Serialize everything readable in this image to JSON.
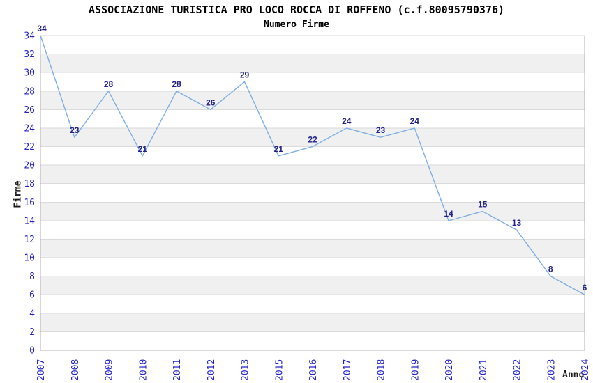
{
  "chart": {
    "title": "ASSOCIAZIONE TURISTICA PRO LOCO ROCCA DI ROFFENO (c.f.80095790376)",
    "subtitle": "Numero Firme",
    "y_axis_title": "Firme",
    "x_axis_title": "Anno"
  },
  "chart_data": {
    "type": "line",
    "title": "ASSOCIAZIONE TURISTICA PRO LOCO ROCCA DI ROFFENO (c.f.80095790376)",
    "subtitle": "Numero Firme",
    "xlabel": "Anno",
    "ylabel": "Firme",
    "categories": [
      "2007",
      "2008",
      "2009",
      "2010",
      "2011",
      "2012",
      "2013",
      "2015",
      "2016",
      "2017",
      "2018",
      "2019",
      "2020",
      "2021",
      "2022",
      "2023",
      "2024"
    ],
    "series": [
      {
        "name": "Numero Firme",
        "values": [
          34,
          23,
          28,
          21,
          28,
          26,
          29,
          21,
          22,
          24,
          23,
          24,
          14,
          15,
          13,
          8,
          6
        ]
      }
    ],
    "ylim": [
      0,
      34
    ],
    "ytick_step": 2,
    "grid": true,
    "banded_background": true,
    "value_labels": true,
    "legend_position": "none",
    "colors": {
      "line": "#7dafe4",
      "value_label": "#22228b",
      "tick_label": "#2323cc",
      "band": "#f0f0f0",
      "gridline": "#dadada",
      "frame": "#b0b0b0",
      "title": "#000000",
      "axis_title": "#1a1a1a"
    }
  }
}
